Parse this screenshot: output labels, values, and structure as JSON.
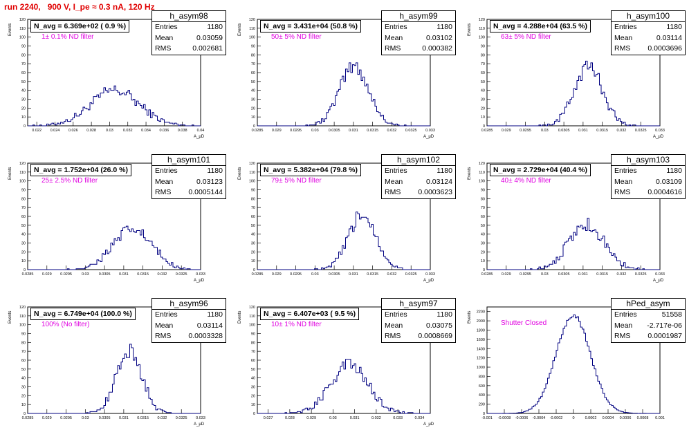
{
  "run_title": "run 2240,   900 V, I_pe ≈ 0.3 nA, 120 Hz",
  "ylabel": "Events",
  "xlabel": "A_μD",
  "stat_labels": {
    "entries": "Entries",
    "mean": "Mean",
    "rms": "RMS"
  },
  "pads": [
    {
      "name": "h_asym98",
      "navg": "N_avg = 6.369e+02 ( 0.9 %)",
      "filter": "1± 0.1% ND filter",
      "entries": "1180",
      "mean": "0.03059",
      "rms": "0.002681",
      "xticks": [
        "0.022",
        "0.024",
        "0.026",
        "0.028",
        "0.03",
        "0.032",
        "0.034",
        "0.036",
        "0.038",
        "0.04"
      ],
      "yticks": [
        "0",
        "10",
        "20",
        "30",
        "40",
        "50",
        "60",
        "70",
        "80",
        "90",
        "100",
        "110",
        "120"
      ]
    },
    {
      "name": "h_asym99",
      "navg": "N_avg = 3.431e+04 (50.8 %)",
      "filter": "50± 5% ND filter",
      "entries": "1180",
      "mean": "0.03102",
      "rms": "0.000382",
      "xticks": [
        "0.0285",
        "0.029",
        "0.0295",
        "0.03",
        "0.0305",
        "0.031",
        "0.0315",
        "0.032",
        "0.0325",
        "0.033"
      ],
      "yticks": [
        "0",
        "10",
        "20",
        "30",
        "40",
        "50",
        "60",
        "70",
        "80",
        "90",
        "100",
        "110",
        "120"
      ]
    },
    {
      "name": "h_asym100",
      "navg": "N_avg = 4.288e+04 (63.5 %)",
      "filter": "63± 5% ND filter",
      "entries": "1180",
      "mean": "0.03114",
      "rms": "0.0003696",
      "xticks": [
        "0.0285",
        "0.029",
        "0.0295",
        "0.03",
        "0.0305",
        "0.031",
        "0.0315",
        "0.032",
        "0.0325",
        "0.033"
      ],
      "yticks": [
        "0",
        "10",
        "20",
        "30",
        "40",
        "50",
        "60",
        "70",
        "80",
        "90",
        "100",
        "110",
        "120"
      ]
    },
    {
      "name": "h_asym101",
      "navg": "N_avg = 1.752e+04 (26.0 %)",
      "filter": "25± 2.5% ND filter",
      "entries": "1180",
      "mean": "0.03123",
      "rms": "0.0005144",
      "xticks": [
        "0.0285",
        "0.029",
        "0.0295",
        "0.03",
        "0.0305",
        "0.031",
        "0.0315",
        "0.032",
        "0.0325",
        "0.033"
      ],
      "yticks": [
        "0",
        "10",
        "20",
        "30",
        "40",
        "50",
        "60",
        "70",
        "80",
        "90",
        "100",
        "110",
        "120"
      ]
    },
    {
      "name": "h_asym102",
      "navg": "N_avg = 5.382e+04 (79.8 %)",
      "filter": "79± 5% ND filter",
      "entries": "1180",
      "mean": "0.03124",
      "rms": "0.0003623",
      "xticks": [
        "0.0285",
        "0.029",
        "0.0295",
        "0.03",
        "0.0305",
        "0.031",
        "0.0315",
        "0.032",
        "0.0325",
        "0.033"
      ],
      "yticks": [
        "0",
        "10",
        "20",
        "30",
        "40",
        "50",
        "60",
        "70",
        "80",
        "90",
        "100",
        "110",
        "120"
      ]
    },
    {
      "name": "h_asym103",
      "navg": "N_avg = 2.729e+04 (40.4 %)",
      "filter": "40± 4% ND filter",
      "entries": "1180",
      "mean": "0.03109",
      "rms": "0.0004616",
      "xticks": [
        "0.0285",
        "0.029",
        "0.0295",
        "0.03",
        "0.0305",
        "0.031",
        "0.0315",
        "0.032",
        "0.0325",
        "0.033"
      ],
      "yticks": [
        "0",
        "10",
        "20",
        "30",
        "40",
        "50",
        "60",
        "70",
        "80",
        "90",
        "100",
        "110",
        "120"
      ]
    },
    {
      "name": "h_asym96",
      "navg": "N_avg = 6.749e+04 (100.0 %)",
      "filter": "100% (No filter)",
      "entries": "1180",
      "mean": "0.03114",
      "rms": "0.0003328",
      "xticks": [
        "0.0285",
        "0.029",
        "0.0295",
        "0.03",
        "0.0305",
        "0.031",
        "0.0315",
        "0.032",
        "0.0325",
        "0.033"
      ],
      "yticks": [
        "0",
        "10",
        "20",
        "30",
        "40",
        "50",
        "60",
        "70",
        "80",
        "90",
        "100",
        "110",
        "120"
      ]
    },
    {
      "name": "h_asym97",
      "navg": "N_avg = 6.407e+03 ( 9.5 %)",
      "filter": "10± 1% ND filter",
      "entries": "1180",
      "mean": "0.03075",
      "rms": "0.0008669",
      "xticks": [
        "0.027",
        "0.028",
        "0.029",
        "0.03",
        "0.031",
        "0.032",
        "0.033",
        "0.034"
      ],
      "yticks": [
        "0",
        "10",
        "20",
        "30",
        "40",
        "50",
        "60",
        "70",
        "80",
        "90",
        "100",
        "110",
        "120"
      ]
    },
    {
      "name": "hPed_asym",
      "navg": "",
      "filter": "Shutter Closed",
      "entries": "51558",
      "mean": "-2.717e-06",
      "rms": "0.0001987",
      "xticks": [
        "-0.001",
        "-0.0008",
        "-0.0006",
        "-0.0004",
        "-0.0002",
        "0",
        "0.0002",
        "0.0004",
        "0.0006",
        "0.0008",
        "0.001"
      ],
      "yticks": [
        "0",
        "200",
        "400",
        "600",
        "800",
        "1000",
        "1200",
        "1400",
        "1600",
        "1800",
        "2000",
        "2200"
      ]
    }
  ],
  "chart_data": [
    {
      "type": "histogram",
      "name": "h_asym98",
      "xlim": [
        0.021,
        0.04
      ],
      "ylim": [
        0,
        120
      ],
      "mean": 0.03059,
      "rms": 0.002681,
      "peak": 40,
      "xlabel": "A_μD",
      "ylabel": "Events"
    },
    {
      "type": "histogram",
      "name": "h_asym99",
      "xlim": [
        0.0285,
        0.033
      ],
      "ylim": [
        0,
        120
      ],
      "mean": 0.03102,
      "rms": 0.000382,
      "peak": 67,
      "xlabel": "A_μD",
      "ylabel": "Events"
    },
    {
      "type": "histogram",
      "name": "h_asym100",
      "xlim": [
        0.0285,
        0.033
      ],
      "ylim": [
        0,
        120
      ],
      "mean": 0.03114,
      "rms": 0.0003696,
      "peak": 67,
      "xlabel": "A_μD",
      "ylabel": "Events"
    },
    {
      "type": "histogram",
      "name": "h_asym101",
      "xlim": [
        0.0285,
        0.033
      ],
      "ylim": [
        0,
        120
      ],
      "mean": 0.03123,
      "rms": 0.0005144,
      "peak": 45,
      "xlabel": "A_μD",
      "ylabel": "Events"
    },
    {
      "type": "histogram",
      "name": "h_asym102",
      "xlim": [
        0.0285,
        0.033
      ],
      "ylim": [
        0,
        120
      ],
      "mean": 0.03124,
      "rms": 0.0003623,
      "peak": 62,
      "xlabel": "A_μD",
      "ylabel": "Events"
    },
    {
      "type": "histogram",
      "name": "h_asym103",
      "xlim": [
        0.0285,
        0.033
      ],
      "ylim": [
        0,
        120
      ],
      "mean": 0.03109,
      "rms": 0.0004616,
      "peak": 51,
      "xlabel": "A_μD",
      "ylabel": "Events"
    },
    {
      "type": "histogram",
      "name": "h_asym96",
      "xlim": [
        0.0285,
        0.033
      ],
      "ylim": [
        0,
        120
      ],
      "mean": 0.03114,
      "rms": 0.0003328,
      "peak": 70,
      "xlabel": "A_μD",
      "ylabel": "Events"
    },
    {
      "type": "histogram",
      "name": "h_asym97",
      "xlim": [
        0.0265,
        0.0345
      ],
      "ylim": [
        0,
        120
      ],
      "mean": 0.03075,
      "rms": 0.0008669,
      "peak": 55,
      "xlabel": "A_μD",
      "ylabel": "Events"
    },
    {
      "type": "histogram",
      "name": "hPed_asym",
      "xlim": [
        -0.001,
        0.001
      ],
      "ylim": [
        0,
        2300
      ],
      "mean": -2.717e-06,
      "rms": 0.0001987,
      "peak": 2120,
      "xlabel": "",
      "ylabel": "Events"
    }
  ]
}
